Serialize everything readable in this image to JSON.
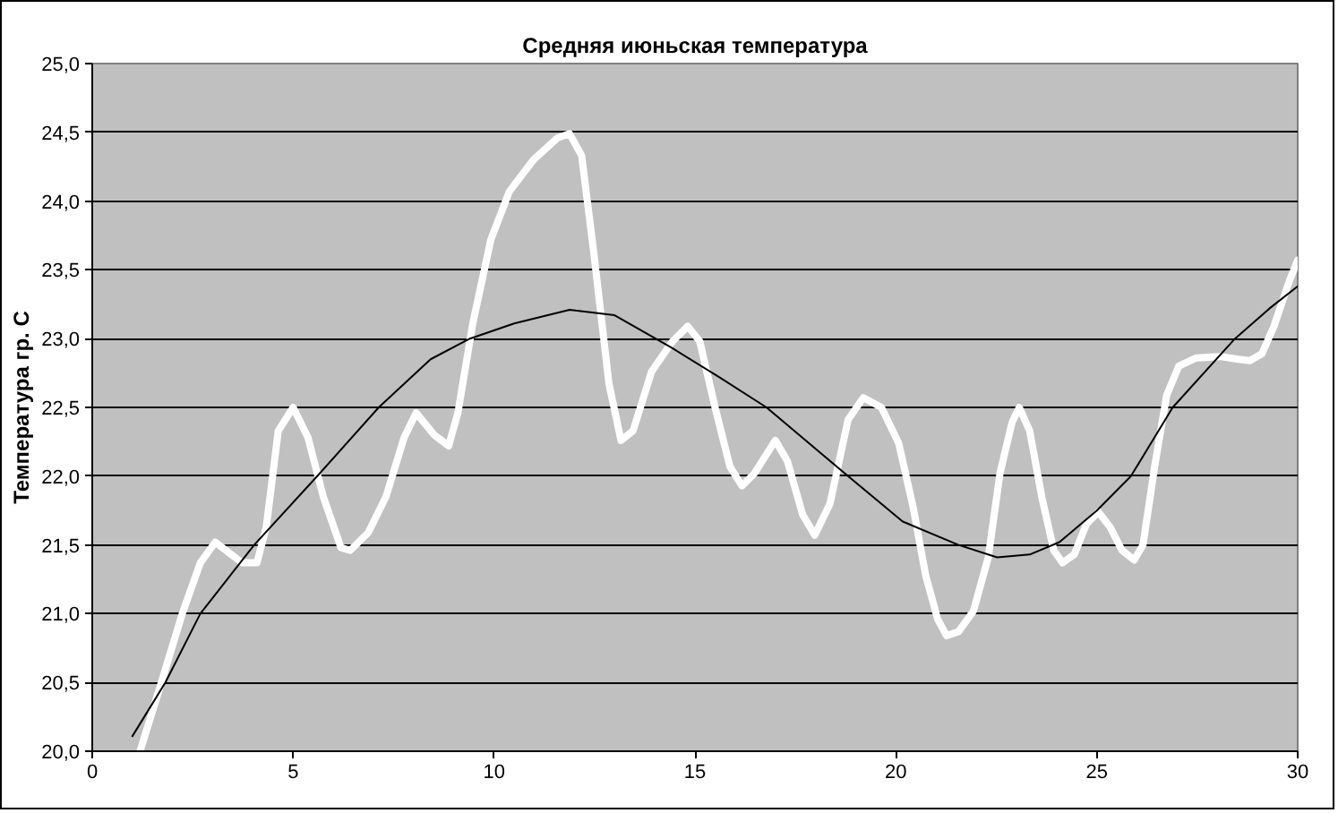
{
  "chart_data": {
    "type": "line",
    "title": "Средняя июньская температура",
    "ylabel": "Температура гр. С",
    "xlim": [
      0,
      30
    ],
    "xticks": [
      0,
      5,
      10,
      15,
      20,
      25,
      30
    ],
    "ylim": [
      20,
      25
    ],
    "yticks": [
      {
        "value": 20,
        "label": "20,0"
      },
      {
        "value": 20.5,
        "label": "20,5"
      },
      {
        "value": 21,
        "label": "21,0"
      },
      {
        "value": 21.5,
        "label": "21,5"
      },
      {
        "value": 22,
        "label": "22,0"
      },
      {
        "value": 22.5,
        "label": "22,5"
      },
      {
        "value": 23,
        "label": "23,0"
      },
      {
        "value": 23.5,
        "label": "23,5"
      },
      {
        "value": 24,
        "label": "24,0"
      },
      {
        "value": 24.5,
        "label": "24,5"
      },
      {
        "value": 25,
        "label": "25,0"
      }
    ],
    "grid": "y",
    "line_style": "solid",
    "series": [
      {
        "color": "#ffffff",
        "x": [
          1.19,
          1.72,
          2.24,
          2.69,
          3.06,
          3.73,
          4.1,
          4.33,
          4.63,
          5.0,
          5.37,
          5.75,
          6.19,
          6.42,
          6.87,
          7.31,
          7.76,
          8.06,
          8.51,
          8.87,
          9.1,
          9.47,
          9.92,
          10.38,
          10.98,
          11.58,
          11.88,
          12.18,
          12.48,
          12.86,
          13.16,
          13.46,
          13.92,
          14.44,
          14.82,
          15.12,
          15.5,
          15.87,
          16.17,
          16.48,
          17.0,
          17.3,
          17.68,
          17.98,
          18.36,
          18.81,
          19.19,
          19.64,
          20.07,
          20.44,
          20.74,
          21.04,
          21.26,
          21.56,
          21.93,
          22.3,
          22.59,
          22.89,
          23.07,
          23.33,
          23.63,
          23.93,
          24.15,
          24.44,
          24.74,
          25.04,
          25.33,
          25.63,
          25.93,
          26.15,
          26.44,
          26.74,
          27.04,
          27.48,
          28.07,
          28.52,
          28.81,
          29.11,
          29.41,
          29.78,
          30.0
        ],
        "values": [
          20.0,
          20.5,
          21.0,
          21.37,
          21.52,
          21.37,
          21.37,
          21.63,
          22.33,
          22.5,
          22.28,
          21.85,
          21.48,
          21.46,
          21.59,
          21.85,
          22.28,
          22.46,
          22.3,
          22.22,
          22.46,
          23.11,
          23.72,
          24.07,
          24.3,
          24.46,
          24.49,
          24.33,
          23.63,
          22.67,
          22.26,
          22.33,
          22.76,
          22.98,
          23.09,
          22.98,
          22.5,
          22.07,
          21.93,
          22.02,
          22.26,
          22.11,
          21.72,
          21.57,
          21.8,
          22.41,
          22.57,
          22.5,
          22.24,
          21.76,
          21.28,
          20.96,
          20.84,
          20.87,
          21.02,
          21.41,
          22.02,
          22.39,
          22.5,
          22.33,
          21.85,
          21.46,
          21.37,
          21.43,
          21.65,
          21.74,
          21.63,
          21.46,
          21.39,
          21.5,
          22.07,
          22.59,
          22.8,
          22.86,
          22.87,
          22.85,
          22.84,
          22.89,
          23.09,
          23.41,
          23.57
        ]
      },
      {
        "type": "line",
        "color": "#000000",
        "x": [
          1.0,
          1.82,
          2.69,
          4.03,
          5.6,
          7.13,
          8.42,
          9.4,
          10.5,
          11.88,
          13.0,
          14.44,
          15.6,
          16.78,
          18.81,
          20.17,
          21.56,
          22.52,
          23.33,
          24.07,
          25.0,
          25.85,
          26.89,
          28.44,
          29.3,
          30.0
        ],
        "values": [
          20.11,
          20.5,
          21.0,
          21.5,
          22.0,
          22.5,
          22.85,
          23.0,
          23.11,
          23.21,
          23.17,
          22.93,
          22.72,
          22.5,
          22.0,
          21.67,
          21.5,
          21.41,
          21.43,
          21.52,
          21.75,
          22.0,
          22.5,
          23.0,
          23.22,
          23.38
        ]
      }
    ]
  }
}
